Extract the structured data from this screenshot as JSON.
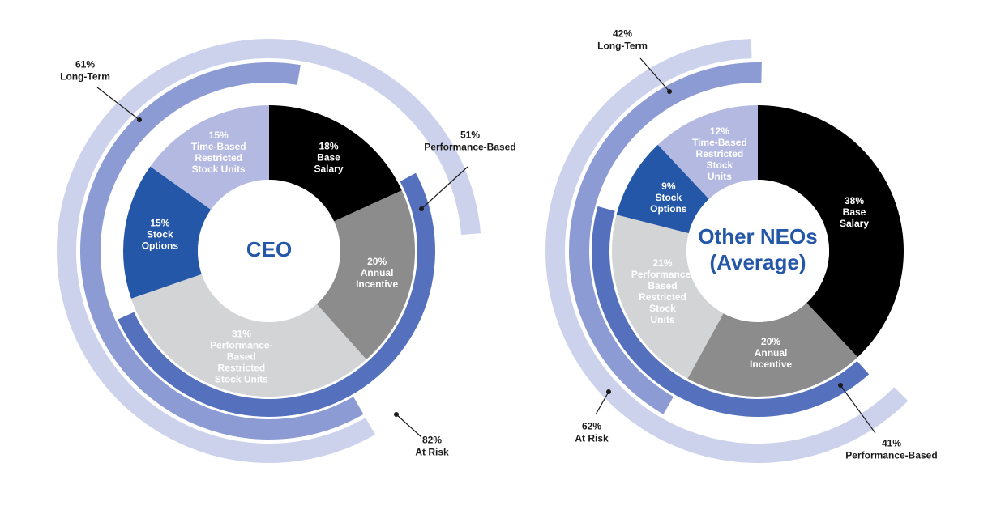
{
  "chart_data": [
    {
      "type": "pie",
      "title": "CEO",
      "slices": [
        {
          "label": [
            "18%",
            "Base",
            "Salary"
          ],
          "value": 18,
          "color": "#000000",
          "text_color": "#ffffff"
        },
        {
          "label": [
            "20%",
            "Annual",
            "Incentive"
          ],
          "value": 20,
          "color": "#8c8c8c",
          "text_color": "#ffffff"
        },
        {
          "label": [
            "31%",
            "Performance-",
            "Based",
            "Restricted",
            "Stock Units"
          ],
          "value": 31,
          "color": "#d3d4d6",
          "text_color": "#ffffff"
        },
        {
          "label": [
            "15%",
            "Stock",
            "Options"
          ],
          "value": 15,
          "color": "#2457a8",
          "text_color": "#ffffff"
        },
        {
          "label": [
            "15%",
            "Time-Based",
            "Restricted",
            "Stock Units"
          ],
          "value": 15,
          "color": "#b3b9e0",
          "text_color": "#ffffff"
        }
      ],
      "rings": [
        {
          "label": [
            "51%",
            "Performance-Based"
          ],
          "value": 51,
          "color": "#5570bd"
        },
        {
          "label": [
            "61%",
            "Long-Term"
          ],
          "value": 61,
          "color": "#8c9bd3"
        },
        {
          "label": [
            "82%",
            "At Risk"
          ],
          "value": 82,
          "color": "#cdd2ec"
        }
      ]
    },
    {
      "type": "pie",
      "title": [
        "Other NEOs",
        "(Average)"
      ],
      "slices": [
        {
          "label": [
            "38%",
            "Base",
            "Salary"
          ],
          "value": 38,
          "color": "#000000",
          "text_color": "#ffffff"
        },
        {
          "label": [
            "20%",
            "Annual",
            "Incentive"
          ],
          "value": 20,
          "color": "#8c8c8c",
          "text_color": "#ffffff"
        },
        {
          "label": [
            "21%",
            "Performance-",
            "Based",
            "Restricted",
            "Stock",
            "Units"
          ],
          "value": 21,
          "color": "#d3d4d6",
          "text_color": "#ffffff"
        },
        {
          "label": [
            "9%",
            "Stock",
            "Options"
          ],
          "value": 9,
          "color": "#2457a8",
          "text_color": "#ffffff"
        },
        {
          "label": [
            "12%",
            "Time-Based",
            "Restricted",
            "Stock",
            "Units"
          ],
          "value": 12,
          "color": "#b3b9e0",
          "text_color": "#ffffff"
        }
      ],
      "rings": [
        {
          "label": [
            "41%",
            "Performance-Based"
          ],
          "value": 41,
          "color": "#5570bd"
        },
        {
          "label": [
            "42%",
            "Long-Term"
          ],
          "value": 42,
          "color": "#8c9bd3"
        },
        {
          "label": [
            "62%",
            "At Risk"
          ],
          "value": 62,
          "color": "#cdd2ec"
        }
      ]
    }
  ]
}
